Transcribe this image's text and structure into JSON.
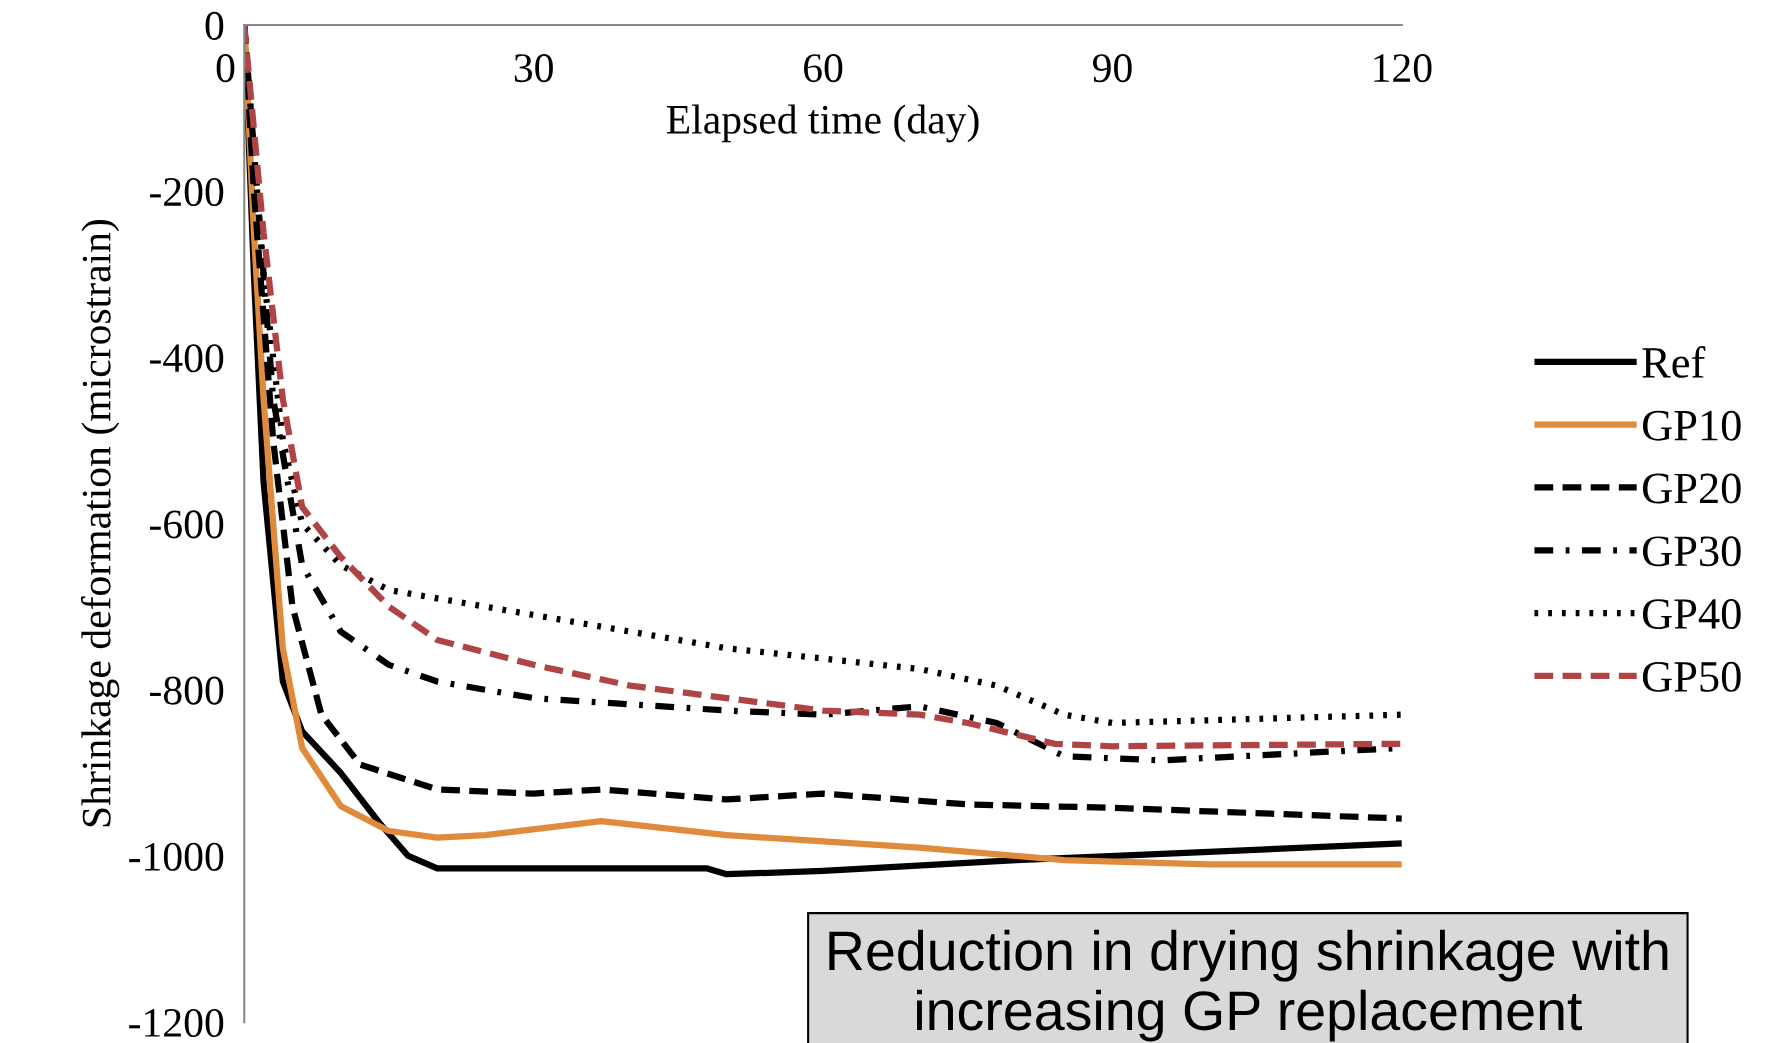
{
  "chart_data": {
    "type": "line",
    "xlabel": "Elapsed time (day)",
    "ylabel": "Shrinkage deformation (microstrain)",
    "xlim": [
      0,
      120
    ],
    "xticks": [
      0,
      30,
      60,
      90,
      120
    ],
    "ylim": [
      -1200,
      0
    ],
    "yticks": [
      -1200,
      -1000,
      -800,
      -600,
      -400,
      -200,
      0
    ],
    "grid": false,
    "legend": "right",
    "marker": "none",
    "annotations": [
      "Reduction in drying shrinkage with increasing GP replacement"
    ],
    "series": [
      {
        "name": "Ref",
        "color": "#000000",
        "line_style": "solid",
        "x": [
          0,
          1,
          2,
          4,
          6,
          10,
          14,
          17,
          20,
          30,
          48,
          50,
          60,
          80,
          100,
          120
        ],
        "values": [
          0,
          -300,
          -550,
          -790,
          -850,
          -900,
          -960,
          -1000,
          -1015,
          -1015,
          -1015,
          -1022,
          -1018,
          -1005,
          -995,
          -985
        ]
      },
      {
        "name": "GP10",
        "color": "#e08a3c",
        "line_style": "solid",
        "x": [
          0,
          1,
          2,
          4,
          6,
          10,
          15,
          20,
          25,
          37,
          50,
          70,
          85,
          100,
          120
        ],
        "values": [
          0,
          -250,
          -450,
          -750,
          -870,
          -940,
          -970,
          -978,
          -975,
          -958,
          -975,
          -990,
          -1005,
          -1010,
          -1010
        ]
      },
      {
        "name": "GP20",
        "color": "#000000",
        "line_style": "dashed",
        "x": [
          0,
          1,
          3,
          5,
          8,
          12,
          20,
          30,
          37,
          50,
          60,
          75,
          90,
          120
        ],
        "values": [
          0,
          -200,
          -500,
          -700,
          -830,
          -890,
          -920,
          -925,
          -920,
          -932,
          -925,
          -938,
          -942,
          -955
        ]
      },
      {
        "name": "GP30",
        "color": "#000000",
        "line_style": "dashdot",
        "x": [
          0,
          1,
          3,
          6,
          10,
          15,
          20,
          30,
          50,
          60,
          70,
          78,
          85,
          95,
          120
        ],
        "values": [
          0,
          -150,
          -450,
          -650,
          -730,
          -770,
          -790,
          -810,
          -825,
          -830,
          -820,
          -840,
          -880,
          -885,
          -870
        ]
      },
      {
        "name": "GP40",
        "color": "#000000",
        "line_style": "dotted",
        "x": [
          0,
          2,
          4,
          6,
          10,
          15,
          30,
          50,
          70,
          78,
          85,
          90,
          120
        ],
        "values": [
          0,
          -300,
          -500,
          -600,
          -650,
          -680,
          -710,
          -750,
          -775,
          -795,
          -830,
          -840,
          -830
        ]
      },
      {
        "name": "GP50",
        "color": "#b04444",
        "line_style": "dashed",
        "x": [
          0,
          2,
          4,
          6,
          10,
          15,
          20,
          30,
          40,
          50,
          60,
          70,
          75,
          84,
          90,
          120
        ],
        "values": [
          0,
          -250,
          -450,
          -580,
          -640,
          -700,
          -740,
          -770,
          -795,
          -810,
          -825,
          -830,
          -840,
          -865,
          -868,
          -865
        ]
      }
    ]
  }
}
